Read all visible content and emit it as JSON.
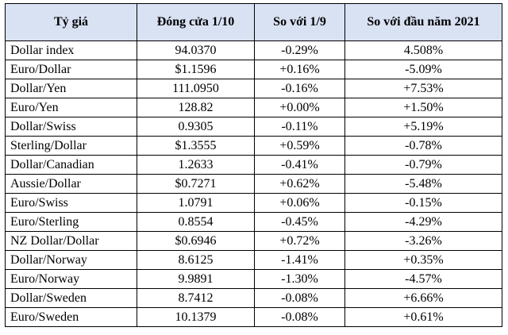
{
  "table": {
    "headers": [
      "Tỷ giá",
      "Đóng cửa 1/10",
      "So với 1/9",
      "So với đầu năm 2021"
    ],
    "rows": [
      [
        "Dollar index",
        "94.0370",
        "-0.29%",
        "4.508%"
      ],
      [
        "Euro/Dollar",
        "$1.1596",
        "+0.16%",
        "-5.09%"
      ],
      [
        "Dollar/Yen",
        "111.0950",
        "-0.16%",
        "+7.53%"
      ],
      [
        "Euro/Yen",
        "128.82",
        "+0.00%",
        "+1.50%"
      ],
      [
        "Dollar/Swiss",
        "0.9305",
        "-0.11%",
        "+5.19%"
      ],
      [
        "Sterling/Dollar",
        "$1.3555",
        "+0.59%",
        "-0.78%"
      ],
      [
        "Dollar/Canadian",
        "1.2633",
        "-0.41%",
        "-0.79%"
      ],
      [
        "Aussie/Dollar",
        "$0.7271",
        "+0.62%",
        "-5.48%"
      ],
      [
        "Euro/Swiss",
        "1.0791",
        "+0.06%",
        "-0.15%"
      ],
      [
        "Euro/Sterling",
        "0.8554",
        "-0.45%",
        "-4.29%"
      ],
      [
        "NZ Dollar/Dollar",
        "$0.6946",
        "+0.72%",
        "-3.26%"
      ],
      [
        "Dollar/Norway",
        "8.6125",
        "-1.41%",
        "+0.35%"
      ],
      [
        "Euro/Norway",
        "9.9891",
        "-1.30%",
        "-4.57%"
      ],
      [
        "Dollar/Sweden",
        "8.7412",
        "-0.08%",
        "+6.66%"
      ],
      [
        "Euro/Sweden",
        "10.1379",
        "-0.08%",
        "+0.61%"
      ]
    ]
  },
  "colors": {
    "header_background": "#d9e2f3",
    "border": "#000000"
  }
}
